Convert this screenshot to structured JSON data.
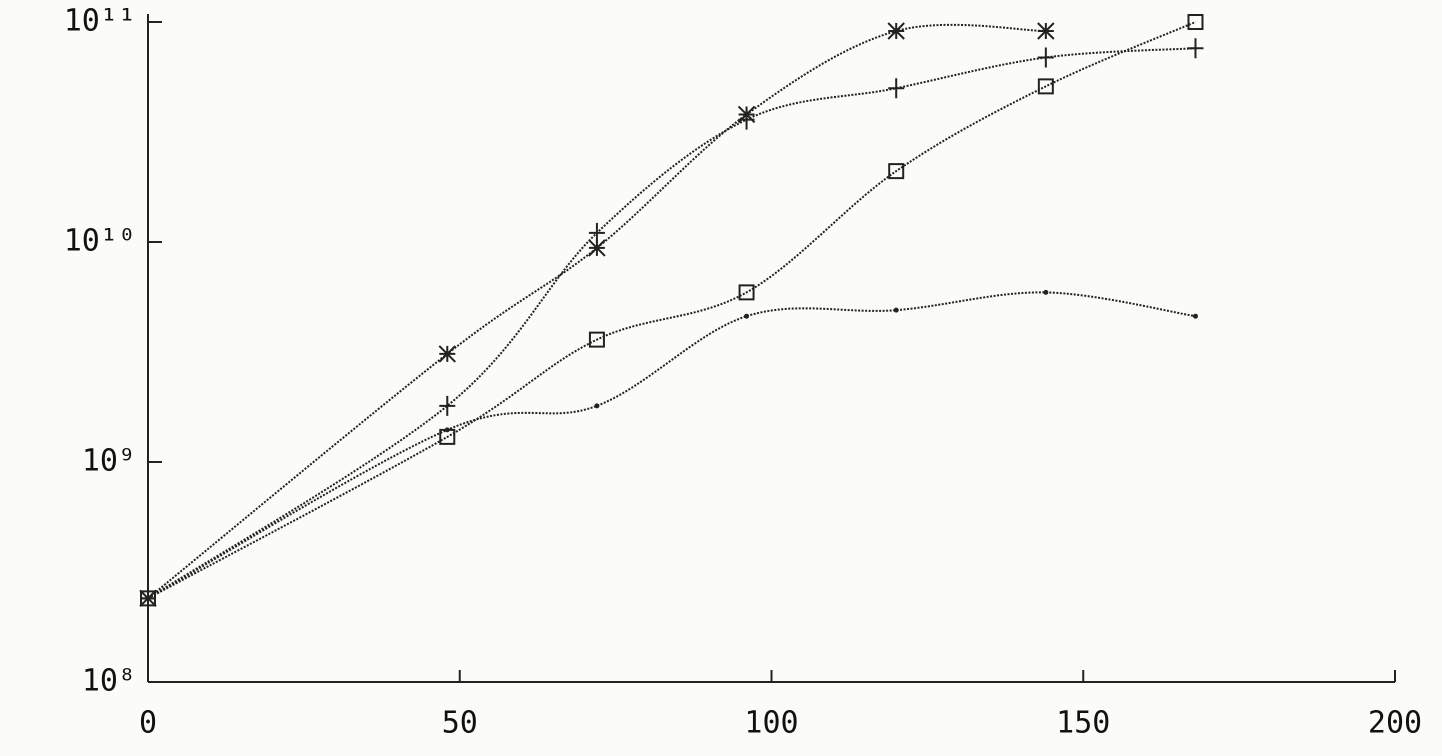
{
  "chart_data": {
    "type": "scatter",
    "log_y": true,
    "color": "#222222",
    "x": [
      0,
      48,
      72,
      96,
      120,
      144,
      168
    ],
    "series": [
      {
        "marker": "star",
        "values": [
          240000000,
          3100000000,
          9400000000,
          38000000000,
          91000000000,
          91000000000,
          null
        ]
      },
      {
        "marker": "plus",
        "values": [
          240000000,
          1800000000,
          11000000000,
          36000000000,
          50000000000,
          69000000000,
          76000000000
        ]
      },
      {
        "marker": "square",
        "values": [
          240000000,
          1300000000,
          3600000000,
          5900000000,
          21000000000,
          51000000000,
          100000000000
        ]
      },
      {
        "marker": "dot",
        "values": [
          240000000,
          1400000000,
          1800000000,
          4600000000,
          4900000000,
          5900000000,
          4600000000
        ]
      }
    ],
    "xlim": [
      0,
      200
    ],
    "xticks": [
      0,
      50,
      100,
      150,
      200
    ],
    "ylim": [
      100000000,
      100000000000
    ],
    "yticks": [
      {
        "value": 100000000,
        "label": "10⁸"
      },
      {
        "value": 1000000000,
        "label": "10⁹"
      },
      {
        "value": 10000000000,
        "label": "10¹⁰"
      },
      {
        "value": 100000000000,
        "label": "10¹¹"
      }
    ]
  }
}
